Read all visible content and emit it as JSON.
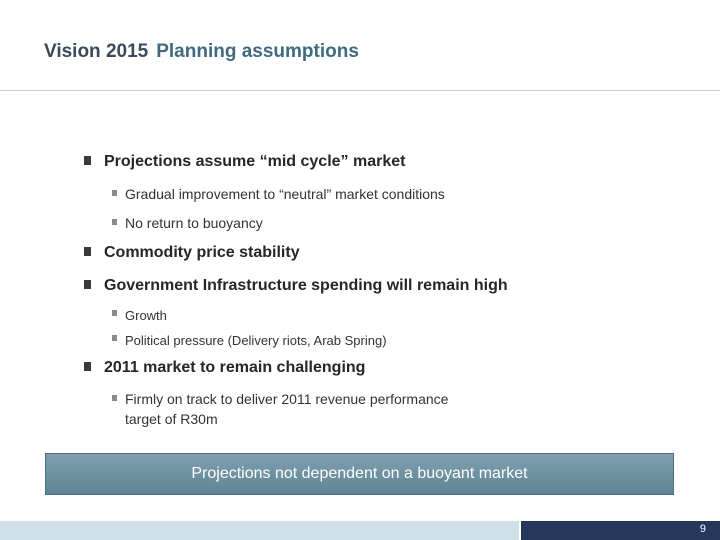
{
  "header": {
    "title_part1": "Vision 2015",
    "title_part2": "Planning assumptions"
  },
  "bullets": [
    {
      "text": "Projections assume “mid cycle” market",
      "subs": [
        "Gradual improvement to “neutral” market conditions",
        "No return to buoyancy"
      ]
    },
    {
      "text": "Commodity price stability",
      "subs": []
    },
    {
      "text": "Government Infrastructure spending will remain high",
      "subs": [
        "Growth",
        "Political pressure (Delivery riots, Arab Spring)"
      ]
    },
    {
      "text": "2011 market to remain challenging",
      "subs": [
        "Firmly on track to deliver 2011 revenue performance",
        "target of R30m"
      ]
    }
  ],
  "banner": {
    "text": "Projections not dependent on a buoyant market"
  },
  "footer": {
    "page_number": "9"
  },
  "colors": {
    "title_dark": "#3a4a5a",
    "title_accent": "#3f6a80",
    "banner": "#6f91a1",
    "footer_light": "#cfe0e8",
    "footer_dark": "#25385c"
  }
}
